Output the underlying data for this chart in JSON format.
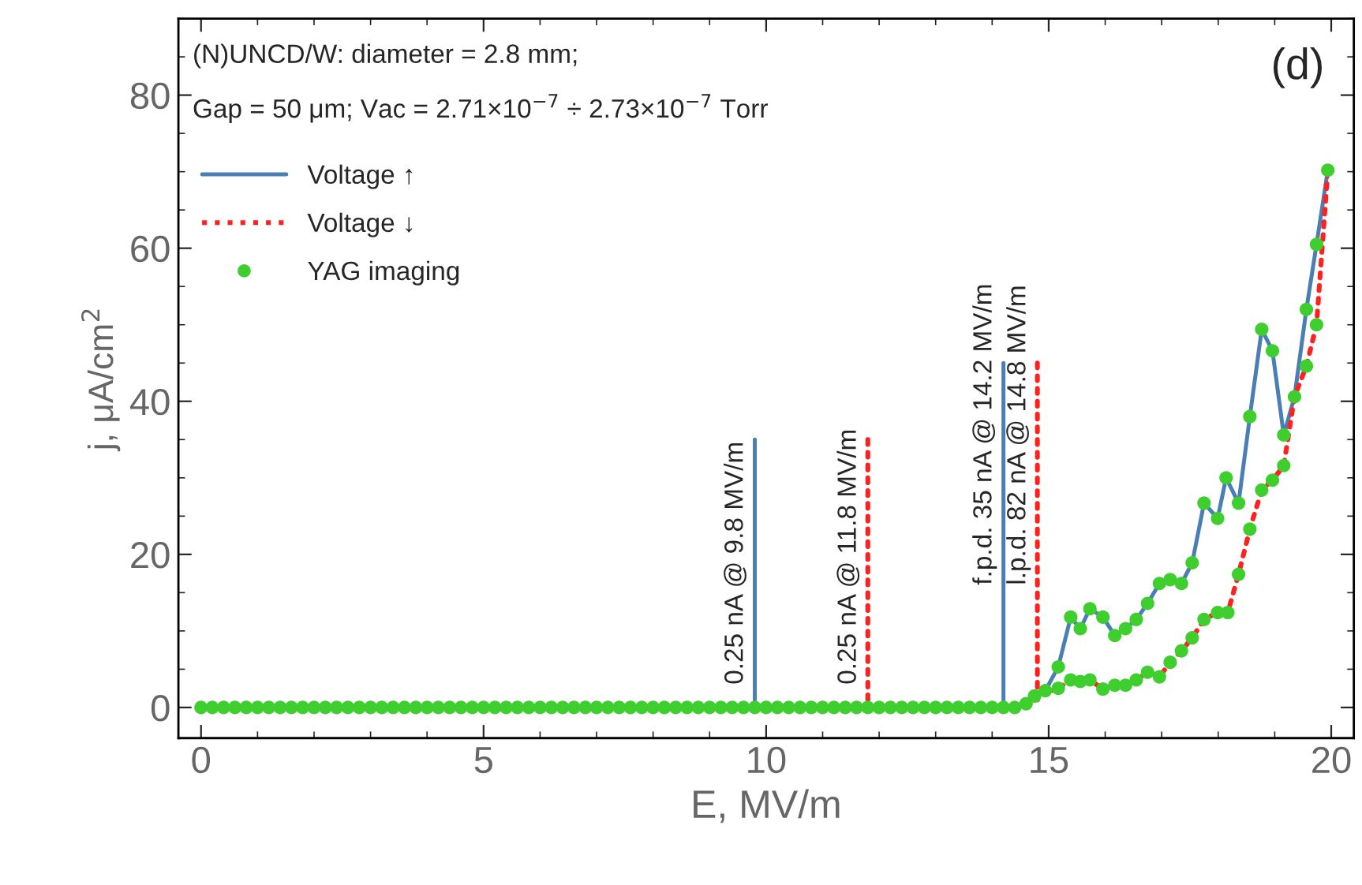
{
  "chart_data": {
    "type": "line",
    "xlabel": "E, MV/m",
    "ylabel": "j, μA/cm$^{2}$",
    "xlim": [
      -0.4,
      20.4
    ],
    "ylim": [
      -4,
      90
    ],
    "xticks": [
      0,
      5,
      10,
      15,
      20
    ],
    "yticks": [
      0,
      20,
      40,
      60,
      80
    ],
    "grid": false,
    "legend": "top left",
    "series": [
      {
        "name": "Voltage ↑",
        "type": "line",
        "color": "#4a7fb5",
        "line_style": "solid",
        "marker": "none",
        "x": [
          14.6,
          14.94,
          15.17,
          15.39,
          15.56,
          15.73,
          15.96,
          16.17,
          16.36,
          16.55,
          16.75,
          16.96,
          17.15,
          17.35,
          17.54,
          17.75,
          17.99,
          18.14,
          18.36,
          18.56,
          18.77,
          18.96,
          19.16,
          19.35,
          19.56,
          19.74,
          19.94
        ],
        "values": [
          0.5,
          2.2,
          5.3,
          11.8,
          10.3,
          12.9,
          11.8,
          9.4,
          10.3,
          11.5,
          13.6,
          16.2,
          16.7,
          16.2,
          18.9,
          26.7,
          24.7,
          30,
          26.7,
          38,
          49.4,
          46.6,
          35.6,
          40.6,
          52,
          60.5,
          70.2
        ]
      },
      {
        "name": "Voltage ↓",
        "type": "line",
        "color": "#ff2020",
        "line_style": "dotted",
        "marker": "none",
        "x": [
          14.75,
          15.17,
          15.39,
          15.56,
          15.73,
          15.96,
          16.17,
          16.36,
          16.55,
          16.75,
          16.96,
          17.15,
          17.35,
          17.54,
          17.75,
          17.99,
          18.17,
          18.36,
          18.56,
          18.77,
          18.96,
          19.16,
          19.35,
          19.56,
          19.74,
          19.94
        ],
        "values": [
          1.5,
          2.5,
          3.6,
          3.4,
          3.6,
          2.4,
          2.9,
          2.9,
          3.6,
          4.6,
          4.0,
          5.9,
          7.4,
          9.1,
          11.5,
          12.4,
          12.4,
          17.4,
          23.3,
          28.4,
          29.7,
          31.6,
          40.6,
          44.6,
          50,
          70.2
        ]
      },
      {
        "name": "YAG imaging",
        "type": "scatter",
        "color": "#3ecf2f",
        "marker": "circle",
        "x": [
          0,
          0.2,
          0.4,
          0.6,
          0.8,
          1,
          1.2,
          1.4,
          1.6,
          1.8,
          2,
          2.2,
          2.4,
          2.6,
          2.8,
          3,
          3.2,
          3.4,
          3.6,
          3.8,
          4,
          4.2,
          4.4,
          4.6,
          4.8,
          5,
          5.2,
          5.4,
          5.6,
          5.8,
          6,
          6.2,
          6.4,
          6.6,
          6.8,
          7,
          7.2,
          7.4,
          7.6,
          7.8,
          8,
          8.2,
          8.4,
          8.6,
          8.8,
          9,
          9.2,
          9.4,
          9.6,
          9.8,
          10,
          10.2,
          10.4,
          10.6,
          10.8,
          11,
          11.2,
          11.4,
          11.6,
          11.8,
          12,
          12.2,
          12.4,
          12.6,
          12.8,
          13,
          13.2,
          13.4,
          13.6,
          13.8,
          14,
          14.2,
          14.4,
          14.6,
          14.75,
          14.94,
          15.17,
          15.39,
          15.56,
          15.73,
          15.96,
          16.17,
          16.36,
          16.55,
          16.75,
          16.96,
          17.15,
          17.35,
          17.54,
          17.75,
          17.99,
          18.14,
          18.36,
          18.56,
          18.77,
          18.96,
          19.16,
          19.35,
          19.56,
          19.74,
          19.94,
          15.17,
          15.39,
          15.56,
          15.73,
          15.96,
          16.17,
          16.36,
          16.55,
          16.75,
          16.96,
          17.15,
          17.35,
          17.54,
          17.75,
          17.99,
          18.17,
          18.36,
          18.56,
          18.77,
          18.96,
          19.16,
          19.56,
          19.74
        ],
        "values": [
          0,
          0,
          0,
          0,
          0,
          0,
          0,
          0,
          0,
          0,
          0,
          0,
          0,
          0,
          0,
          0,
          0,
          0,
          0,
          0,
          0,
          0,
          0,
          0,
          0,
          0,
          0,
          0,
          0,
          0,
          0,
          0,
          0,
          0,
          0,
          0,
          0,
          0,
          0,
          0,
          0,
          0,
          0,
          0,
          0,
          0,
          0,
          0,
          0,
          0,
          0,
          0,
          0,
          0,
          0,
          0,
          0,
          0,
          0,
          0,
          0,
          0,
          0,
          0,
          0,
          0,
          0,
          0,
          0,
          0,
          0,
          0,
          0,
          0.5,
          1.5,
          2.2,
          5.3,
          11.8,
          10.3,
          12.9,
          11.8,
          9.4,
          10.3,
          11.5,
          13.6,
          16.2,
          16.7,
          16.2,
          18.9,
          26.7,
          24.7,
          30,
          26.7,
          38,
          49.4,
          46.6,
          35.6,
          40.6,
          52,
          60.5,
          70.2,
          2.5,
          3.6,
          3.4,
          3.6,
          2.4,
          2.9,
          2.9,
          3.6,
          4.6,
          4.0,
          5.9,
          7.4,
          9.1,
          11.5,
          12.4,
          12.4,
          17.4,
          23.3,
          28.4,
          29.7,
          31.6,
          44.6,
          50
        ]
      },
      {
        "type": "line",
        "color": "#4a7fb5",
        "line_style": "solid",
        "marker": "none",
        "x": [
          9.8,
          9.8
        ],
        "values": [
          0,
          35
        ]
      },
      {
        "type": "line",
        "color": "#ff2020",
        "line_style": "dotted",
        "marker": "none",
        "x": [
          11.8,
          11.8
        ],
        "values": [
          35,
          0
        ]
      },
      {
        "type": "line",
        "color": "#4a7fb5",
        "line_style": "solid",
        "marker": "none",
        "x": [
          14.2,
          14.2
        ],
        "values": [
          0,
          45
        ]
      },
      {
        "type": "line",
        "color": "#ff2020",
        "line_style": "dotted",
        "marker": "none",
        "x": [
          14.8,
          14.8
        ],
        "values": [
          45,
          0
        ]
      }
    ],
    "annotations": [
      "(N)UNCD/W: diameter = 2.8 mm;",
      "Gap = 50 μm; Vac = 2.71×10$^{−7}$ ÷ 2.73×10$^{−7}$ Torr",
      "(d)",
      {
        "text": "0.25 nA @ 9.8 MV/m",
        "x": 9.8,
        "y": 3
      },
      {
        "text": "0.25 nA @ 11.8 MV/m",
        "x": 11.8,
        "y": 3
      },
      {
        "text": "f.p.d. 35 nA @ 14.2 MV/m",
        "x": 14.2,
        "y": 16
      },
      {
        "text": "l.p.d. 82 nA @ 14.8 MV/m",
        "x": 14.8,
        "y": 16
      }
    ]
  }
}
